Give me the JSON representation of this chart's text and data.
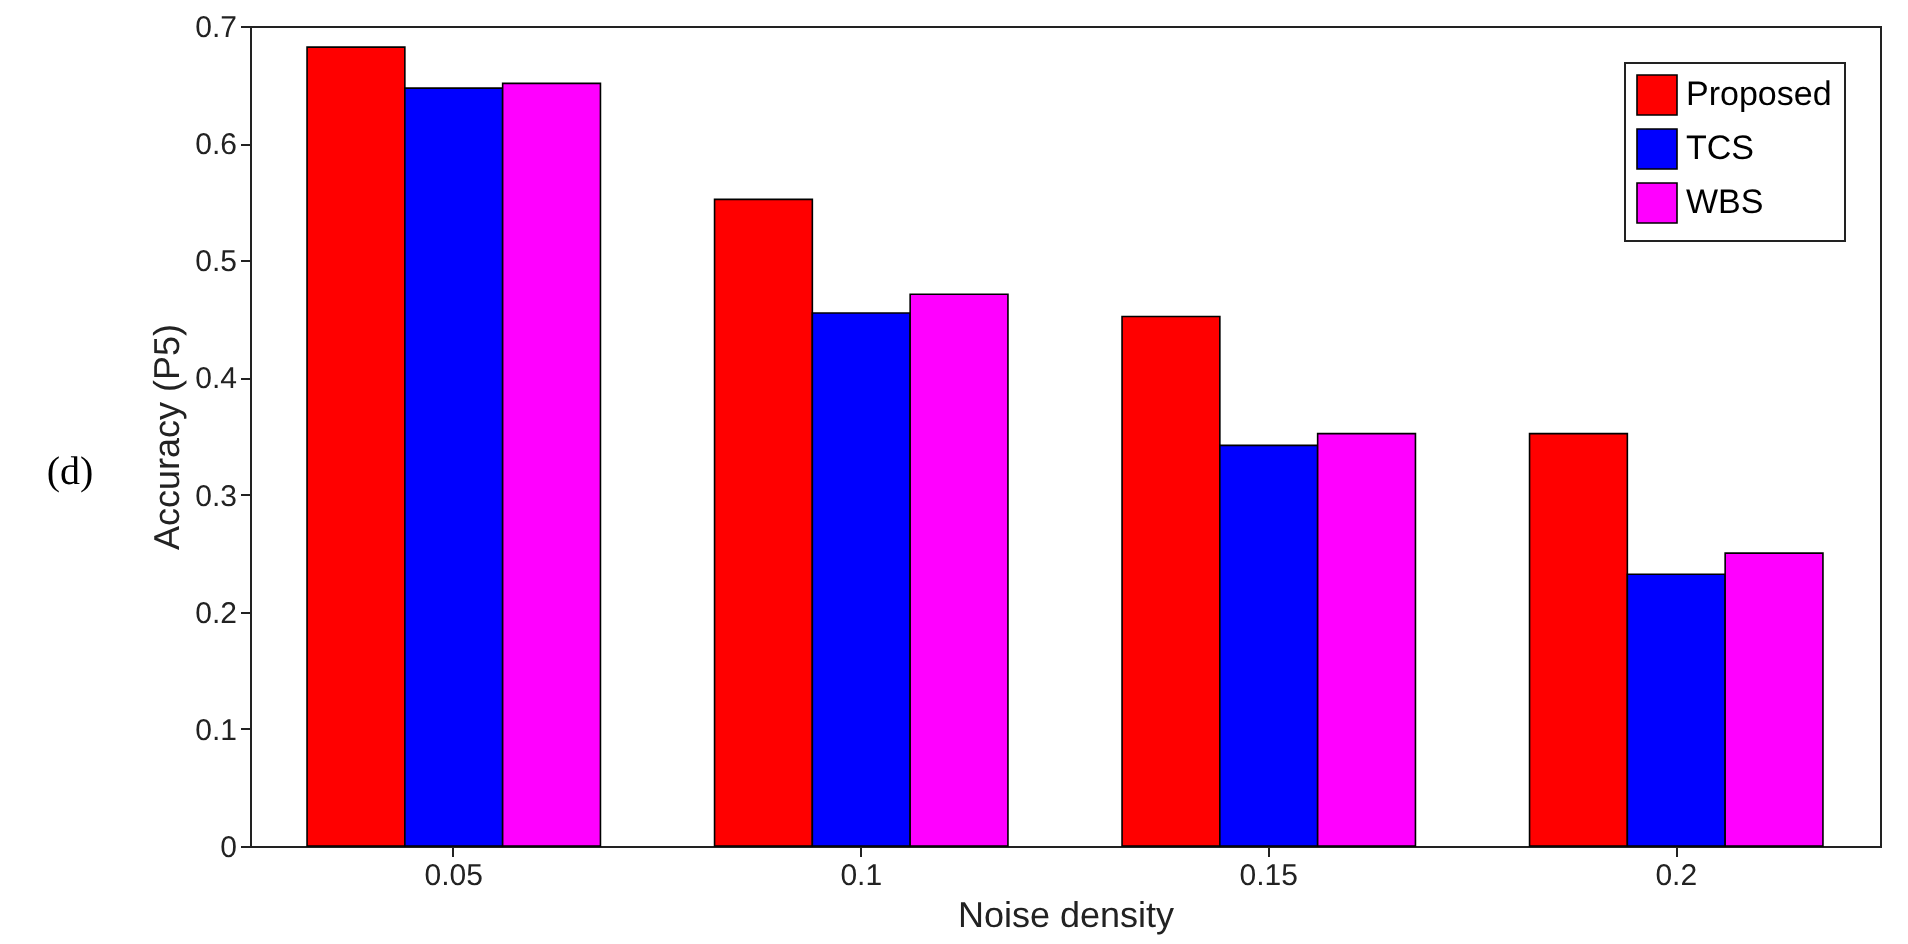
{
  "chart_data": {
    "type": "bar",
    "xlabel": "Noise density",
    "ylabel": "Accuracy (P5)",
    "annotations": [
      "(d)"
    ],
    "categories": [
      "0.05",
      "0.1",
      "0.15",
      "0.2"
    ],
    "series": [
      {
        "name": "Proposed",
        "color": "#ff0000",
        "values": [
          0.682,
          0.552,
          0.452,
          0.352
        ]
      },
      {
        "name": "TCS",
        "color": "#0000ff",
        "values": [
          0.647,
          0.455,
          0.342,
          0.232
        ]
      },
      {
        "name": "WBS",
        "color": "#ff00ff",
        "values": [
          0.651,
          0.471,
          0.352,
          0.25
        ]
      }
    ],
    "ylim": [
      0,
      0.7
    ],
    "yticks": [
      0,
      0.1,
      0.2,
      0.3,
      0.4,
      0.5,
      0.6,
      0.7
    ],
    "grid": false,
    "legend": "top right"
  }
}
